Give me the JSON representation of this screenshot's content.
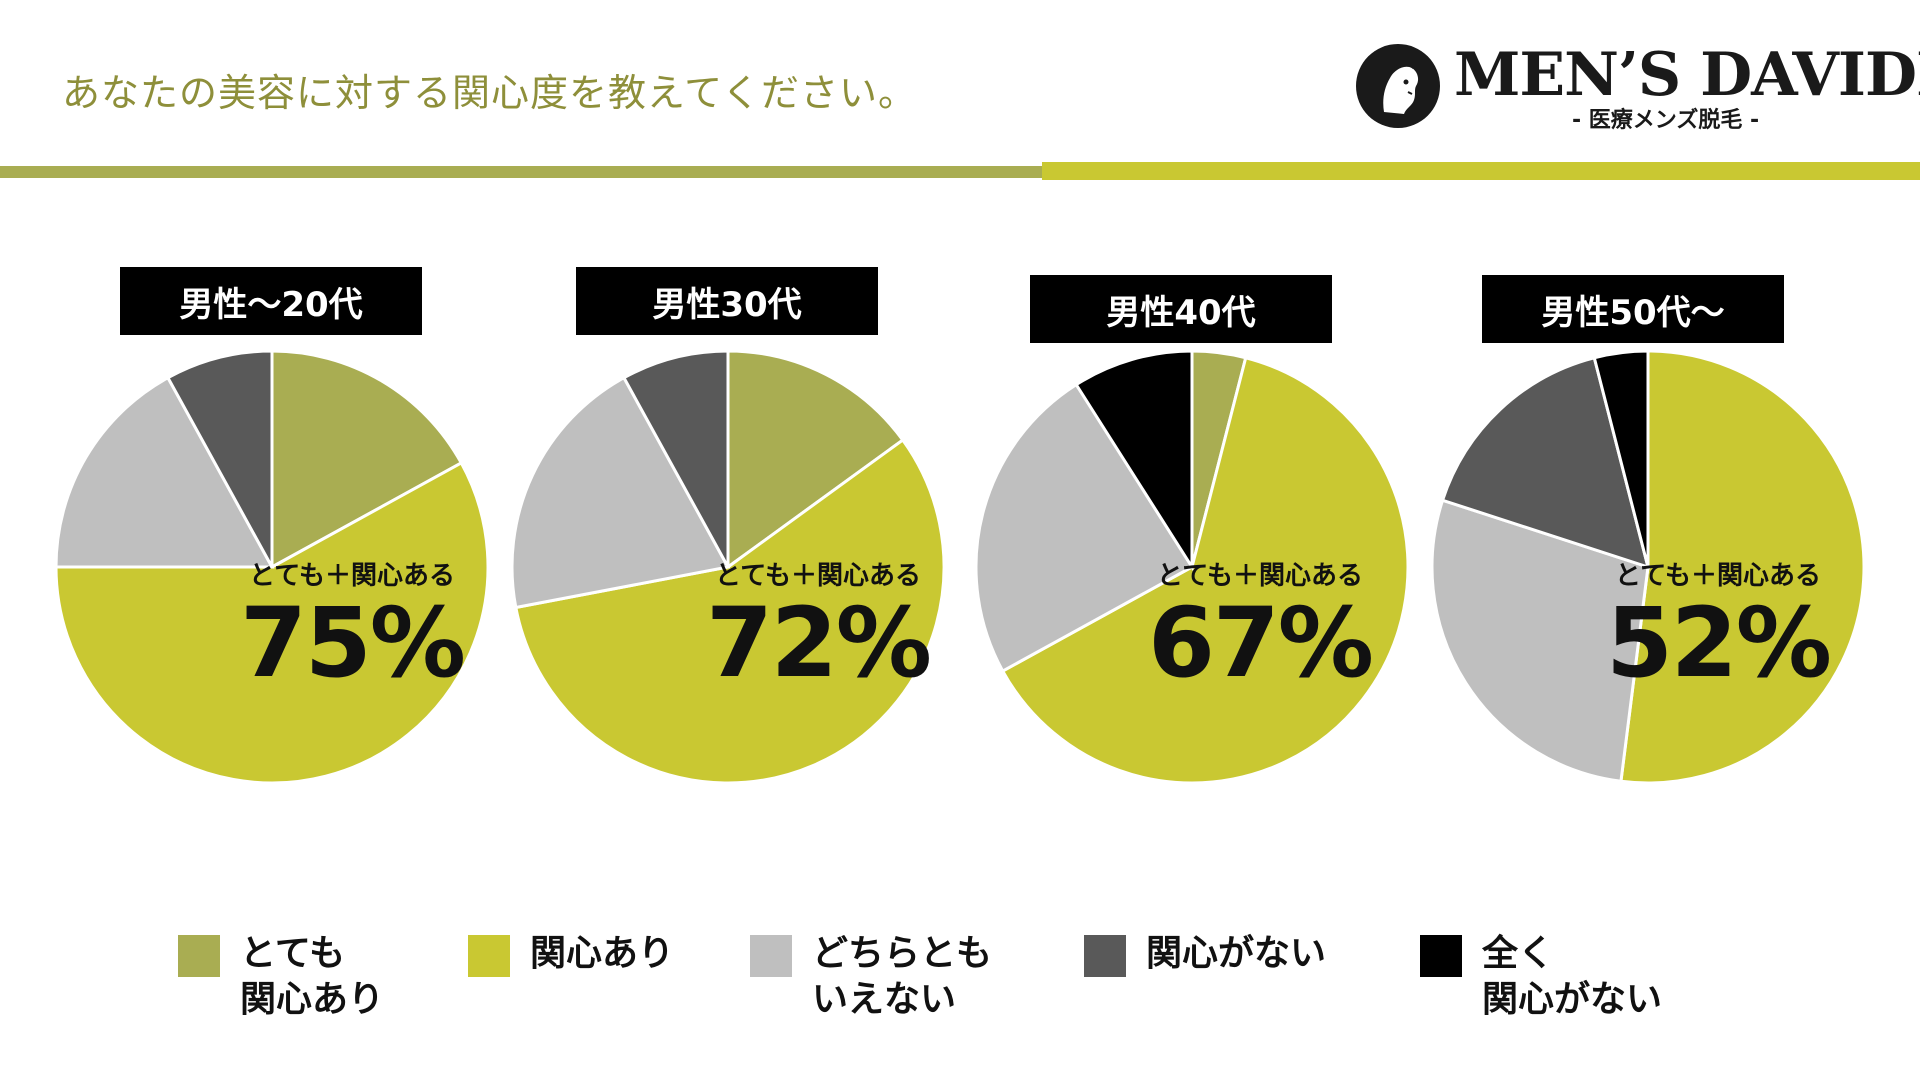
{
  "question": "あなたの美容に対する関心度を教えてください。",
  "logo": {
    "title": "MEN’S DAVIDE",
    "subtitle": "- 医療メンズ脱毛 -"
  },
  "colors": {
    "totemo": "#a9ad52",
    "kanshin_ari": "#c9c832",
    "dochira": "#bfbfbf",
    "kanshin_nai": "#595959",
    "mattaku": "#000000",
    "question": "#8e8f3a"
  },
  "legend": [
    {
      "label": "とても\n関心あり",
      "color": "#a9ad52"
    },
    {
      "label": "関心あり",
      "color": "#c9c832"
    },
    {
      "label": "どちらとも\nいえない",
      "color": "#bfbfbf"
    },
    {
      "label": "関心がない",
      "color": "#595959"
    },
    {
      "label": "全く\n関心がない",
      "color": "#000000"
    }
  ],
  "chart_data": [
    {
      "type": "pie",
      "title": "男性〜20代",
      "categories": [
        "とても関心あり",
        "関心あり",
        "どちらともいえない",
        "関心がない",
        "全く関心がない"
      ],
      "values": [
        17,
        58,
        17,
        8,
        0
      ],
      "annotation_caption": "とても＋関心ある",
      "annotation_value": "75%"
    },
    {
      "type": "pie",
      "title": "男性30代",
      "categories": [
        "とても関心あり",
        "関心あり",
        "どちらともいえない",
        "関心がない",
        "全く関心がない"
      ],
      "values": [
        15,
        57,
        20,
        8,
        0
      ],
      "annotation_caption": "とても＋関心ある",
      "annotation_value": "72%"
    },
    {
      "type": "pie",
      "title": "男性40代",
      "categories": [
        "とても関心あり",
        "関心あり",
        "どちらともいえない",
        "関心がない",
        "全く関心がない"
      ],
      "values": [
        4,
        63,
        24,
        0,
        9
      ],
      "annotation_caption": "とても＋関心ある",
      "annotation_value": "67%"
    },
    {
      "type": "pie",
      "title": "男性50代〜",
      "categories": [
        "とても関心あり",
        "関心あり",
        "どちらともいえない",
        "関心がない",
        "全く関心がない"
      ],
      "values": [
        0,
        52,
        28,
        16,
        4
      ],
      "annotation_caption": "とても＋関心ある",
      "annotation_value": "52%"
    }
  ]
}
